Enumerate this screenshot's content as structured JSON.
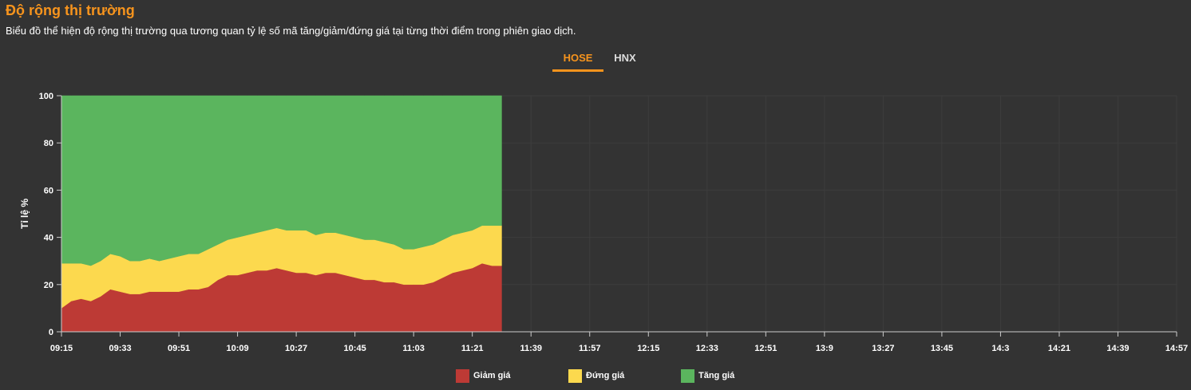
{
  "header": {
    "title": "Độ rộng thị trường",
    "subtitle": "Biểu đồ thể hiện độ rộng thị trường qua tương quan tỷ lệ số mã tăng/giảm/đứng giá tại từng thời điểm trong phiên giao dịch."
  },
  "tabs": [
    {
      "label": "HOSE",
      "active": true
    },
    {
      "label": "HNX",
      "active": false
    }
  ],
  "chart_data": {
    "type": "area",
    "stacked": true,
    "ylabel": "Tỉ lệ %",
    "xlabel": "",
    "ylim": [
      0,
      100
    ],
    "yticks": [
      0,
      20,
      40,
      60,
      80,
      100
    ],
    "xticks": [
      "09:15",
      "09:33",
      "09:51",
      "10:09",
      "10:27",
      "10:45",
      "11:03",
      "11:21",
      "11:39",
      "11:57",
      "12:15",
      "12:33",
      "12:51",
      "13:9",
      "13:27",
      "13:45",
      "14:3",
      "14:21",
      "14:39",
      "14:57"
    ],
    "grid": true,
    "legend_position": "bottom",
    "x": [
      "09:15",
      "09:18",
      "09:21",
      "09:24",
      "09:27",
      "09:30",
      "09:33",
      "09:36",
      "09:39",
      "09:42",
      "09:45",
      "09:48",
      "09:51",
      "09:54",
      "09:57",
      "10:00",
      "10:03",
      "10:06",
      "10:09",
      "10:12",
      "10:15",
      "10:18",
      "10:21",
      "10:24",
      "10:27",
      "10:30",
      "10:33",
      "10:36",
      "10:39",
      "10:42",
      "10:45",
      "10:48",
      "10:51",
      "10:54",
      "10:57",
      "11:00",
      "11:03",
      "11:06",
      "11:09",
      "11:12",
      "11:15",
      "11:18",
      "11:21",
      "11:24",
      "11:27",
      "11:30"
    ],
    "series": [
      {
        "name": "Giảm giá",
        "color": "#bd3a35",
        "values": [
          10,
          13,
          14,
          13,
          15,
          18,
          17,
          16,
          16,
          17,
          17,
          17,
          17,
          18,
          18,
          19,
          22,
          24,
          24,
          25,
          26,
          26,
          27,
          26,
          25,
          25,
          24,
          25,
          25,
          24,
          23,
          22,
          22,
          21,
          21,
          20,
          20,
          20,
          21,
          23,
          25,
          26,
          27,
          29,
          28,
          28
        ]
      },
      {
        "name": "Đứng giá",
        "color": "#fcd94e",
        "values": [
          19,
          16,
          15,
          15,
          15,
          15,
          15,
          14,
          14,
          14,
          13,
          14,
          15,
          15,
          15,
          16,
          15,
          15,
          16,
          16,
          16,
          17,
          17,
          17,
          18,
          18,
          17,
          17,
          17,
          17,
          17,
          17,
          17,
          17,
          16,
          15,
          15,
          16,
          16,
          16,
          16,
          16,
          16,
          16,
          17,
          17
        ]
      },
      {
        "name": "Tăng giá",
        "color": "#5bb55e",
        "values": [
          71,
          71,
          71,
          72,
          70,
          67,
          68,
          70,
          70,
          69,
          70,
          69,
          68,
          67,
          67,
          65,
          63,
          61,
          60,
          59,
          58,
          57,
          56,
          57,
          57,
          57,
          59,
          58,
          58,
          59,
          60,
          61,
          61,
          62,
          63,
          65,
          65,
          64,
          63,
          61,
          59,
          58,
          57,
          55,
          55,
          55
        ]
      }
    ]
  }
}
